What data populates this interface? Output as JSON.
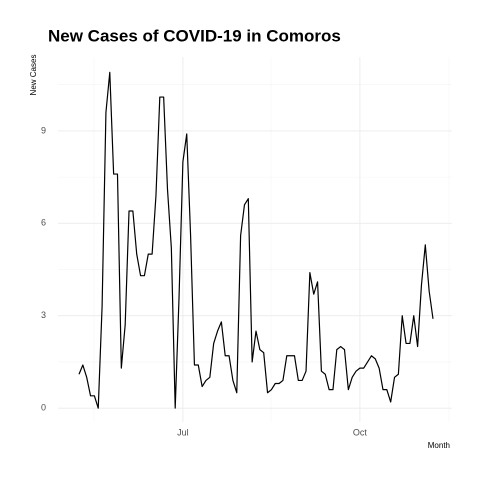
{
  "chart_data": {
    "type": "line",
    "title": "New Cases of COVID-19 in Comoros",
    "y_label": "New Cases",
    "x_label": "Month",
    "color": "#000000",
    "grid": true,
    "ylim": [
      -0.45,
      11.4
    ],
    "yticks": [
      0,
      3,
      6,
      9
    ],
    "categories": [
      null,
      null,
      null,
      null,
      null,
      null,
      null,
      null,
      null,
      null,
      null,
      null,
      null,
      null,
      null,
      null,
      null,
      null,
      null,
      null,
      null,
      null,
      null,
      null,
      null,
      null,
      null,
      "Jul",
      null,
      null,
      null,
      null,
      null,
      null,
      null,
      null,
      null,
      null,
      null,
      null,
      null,
      null,
      null,
      null,
      null,
      null,
      null,
      null,
      null,
      null,
      null,
      null,
      null,
      null,
      null,
      null,
      null,
      null,
      null,
      null,
      null,
      null,
      null,
      null,
      null,
      null,
      null,
      null,
      null,
      null,
      null,
      null,
      null,
      "Oct",
      null,
      null,
      null,
      null,
      null,
      null,
      null,
      null,
      null,
      null,
      null,
      null,
      null,
      null,
      null,
      null,
      null,
      null,
      null
    ],
    "values": [
      1.1,
      1.4,
      1.0,
      0.4,
      0.4,
      0.0,
      3.3,
      9.6,
      10.9,
      7.6,
      7.6,
      1.3,
      2.7,
      6.4,
      6.4,
      5.0,
      4.3,
      4.3,
      5.0,
      5.0,
      6.9,
      10.1,
      10.1,
      7.1,
      5.2,
      0.0,
      3.6,
      8.0,
      8.9,
      5.6,
      1.4,
      1.4,
      0.7,
      0.9,
      1.0,
      2.1,
      2.5,
      2.8,
      1.7,
      1.7,
      0.9,
      0.5,
      5.6,
      6.6,
      6.8,
      1.5,
      2.5,
      1.9,
      1.8,
      0.5,
      0.6,
      0.8,
      0.8,
      0.9,
      1.7,
      1.7,
      1.7,
      0.9,
      0.9,
      1.2,
      4.4,
      3.7,
      4.1,
      1.2,
      1.1,
      0.6,
      0.6,
      1.9,
      2.0,
      1.9,
      0.6,
      1.0,
      1.2,
      1.3,
      1.3,
      1.5,
      1.7,
      1.6,
      1.3,
      0.6,
      0.6,
      0.2,
      1.0,
      1.1,
      3.0,
      2.1,
      2.1,
      3.0,
      2.0,
      4.0,
      5.3,
      3.8,
      2.9
    ]
  }
}
